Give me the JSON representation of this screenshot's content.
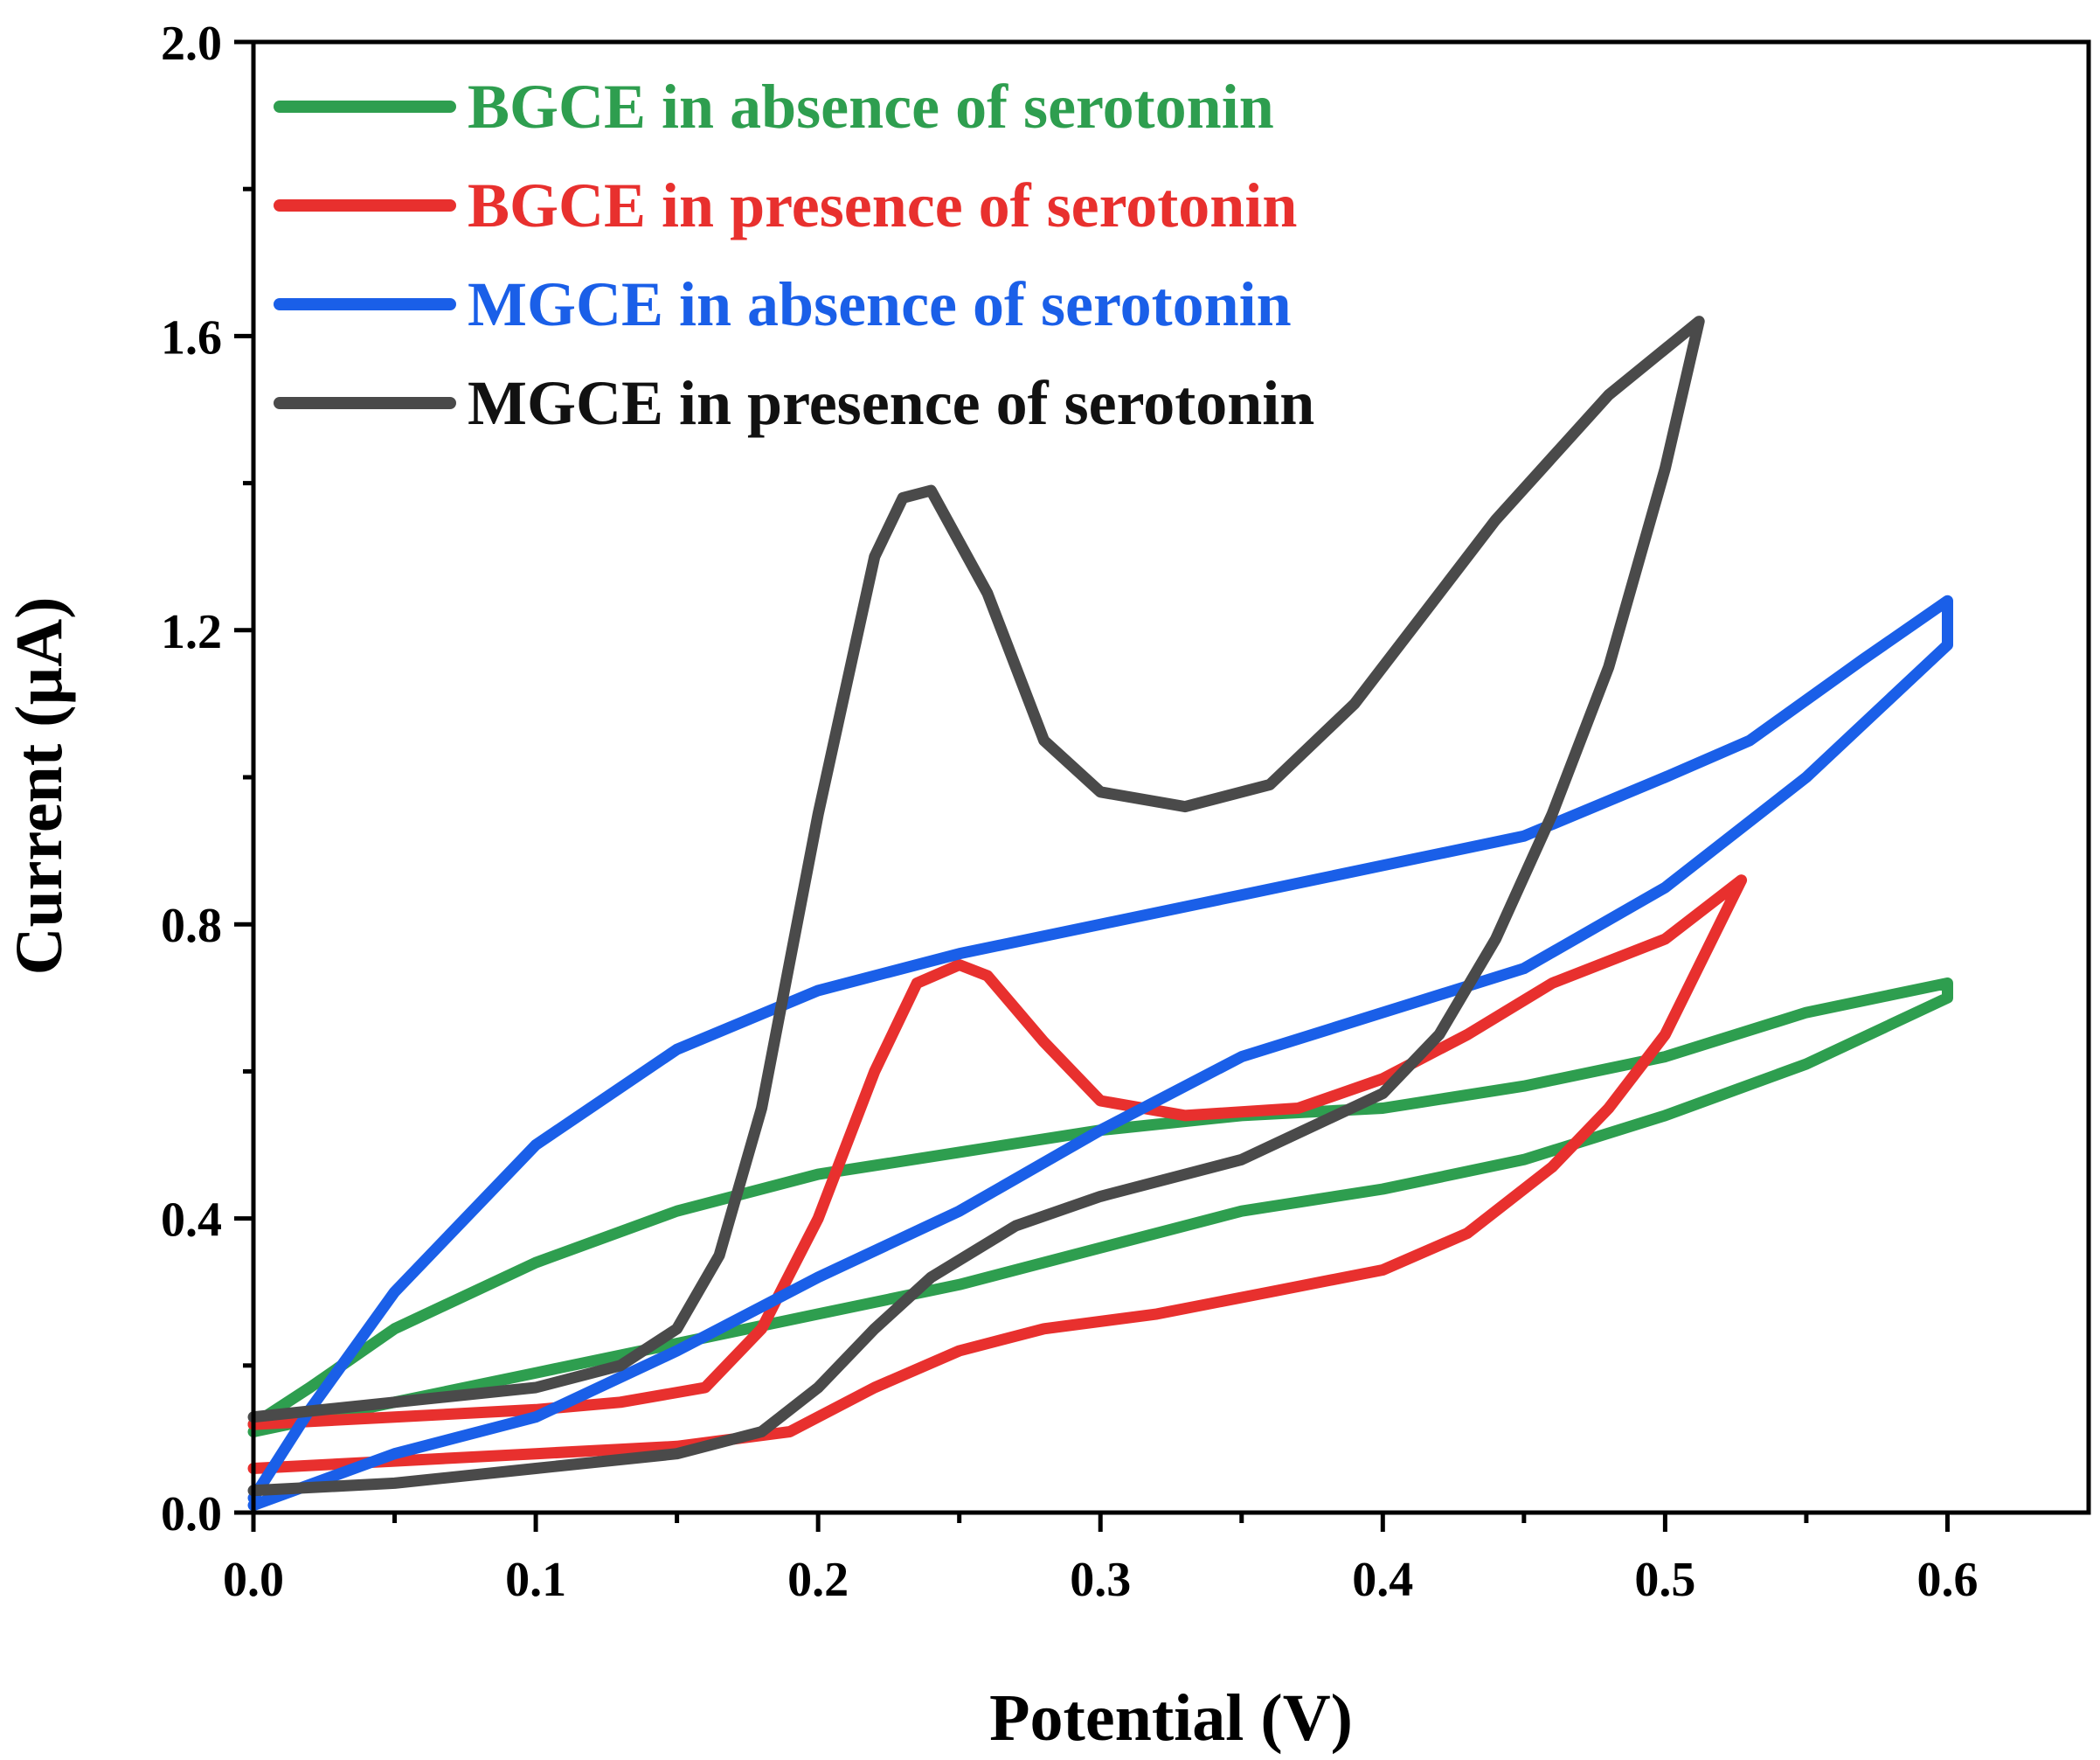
{
  "chart_data": {
    "type": "line",
    "title": "",
    "xlabel": "Potential (V)",
    "ylabel": "Current (µA)",
    "xlim": [
      0.0,
      0.65
    ],
    "ylim": [
      0.0,
      2.0
    ],
    "x_ticks": [
      0.0,
      0.1,
      0.2,
      0.3,
      0.4,
      0.5,
      0.6
    ],
    "x_tick_labels": [
      "0.0",
      "0.1",
      "0.2",
      "0.3",
      "0.4",
      "0.5",
      "0.6"
    ],
    "y_ticks": [
      0.0,
      0.4,
      0.8,
      1.2,
      1.6,
      2.0
    ],
    "y_tick_labels": [
      "0.0",
      "0.4",
      "0.8",
      "1.2",
      "1.6",
      "2.0"
    ],
    "grid": false,
    "legend_position": "top-left",
    "series": [
      {
        "name": "BGCE in absence of serotonin",
        "color": "#2e9e4f",
        "points": [
          [
            0.0,
            0.11
          ],
          [
            0.05,
            0.15
          ],
          [
            0.1,
            0.19
          ],
          [
            0.15,
            0.23
          ],
          [
            0.2,
            0.27
          ],
          [
            0.25,
            0.31
          ],
          [
            0.3,
            0.36
          ],
          [
            0.35,
            0.41
          ],
          [
            0.4,
            0.44
          ],
          [
            0.45,
            0.48
          ],
          [
            0.5,
            0.54
          ],
          [
            0.55,
            0.61
          ],
          [
            0.6,
            0.7
          ],
          [
            0.6,
            0.72
          ],
          [
            0.55,
            0.68
          ],
          [
            0.5,
            0.62
          ],
          [
            0.45,
            0.58
          ],
          [
            0.4,
            0.55
          ],
          [
            0.35,
            0.54
          ],
          [
            0.3,
            0.52
          ],
          [
            0.25,
            0.49
          ],
          [
            0.2,
            0.46
          ],
          [
            0.15,
            0.41
          ],
          [
            0.1,
            0.34
          ],
          [
            0.05,
            0.25
          ],
          [
            0.02,
            0.17
          ],
          [
            0.0,
            0.12
          ]
        ]
      },
      {
        "name": "BGCE in presence of serotonin",
        "color": "#e8302e",
        "points": [
          [
            0.0,
            0.06
          ],
          [
            0.05,
            0.07
          ],
          [
            0.1,
            0.08
          ],
          [
            0.15,
            0.09
          ],
          [
            0.19,
            0.11
          ],
          [
            0.22,
            0.17
          ],
          [
            0.25,
            0.22
          ],
          [
            0.28,
            0.25
          ],
          [
            0.32,
            0.27
          ],
          [
            0.36,
            0.3
          ],
          [
            0.4,
            0.33
          ],
          [
            0.43,
            0.38
          ],
          [
            0.46,
            0.47
          ],
          [
            0.48,
            0.55
          ],
          [
            0.5,
            0.65
          ],
          [
            0.527,
            0.86
          ],
          [
            0.5,
            0.78
          ],
          [
            0.46,
            0.72
          ],
          [
            0.43,
            0.65
          ],
          [
            0.4,
            0.59
          ],
          [
            0.37,
            0.55
          ],
          [
            0.33,
            0.54
          ],
          [
            0.3,
            0.56
          ],
          [
            0.28,
            0.64
          ],
          [
            0.26,
            0.73
          ],
          [
            0.25,
            0.745
          ],
          [
            0.235,
            0.72
          ],
          [
            0.22,
            0.6
          ],
          [
            0.2,
            0.4
          ],
          [
            0.18,
            0.25
          ],
          [
            0.16,
            0.17
          ],
          [
            0.13,
            0.15
          ],
          [
            0.1,
            0.14
          ],
          [
            0.05,
            0.13
          ],
          [
            0.0,
            0.12
          ]
        ]
      },
      {
        "name": "MGCE in absence of serotonin",
        "color": "#1a5fe8",
        "points": [
          [
            0.0,
            0.01
          ],
          [
            0.05,
            0.08
          ],
          [
            0.1,
            0.13
          ],
          [
            0.15,
            0.22
          ],
          [
            0.2,
            0.32
          ],
          [
            0.25,
            0.41
          ],
          [
            0.3,
            0.52
          ],
          [
            0.35,
            0.62
          ],
          [
            0.4,
            0.68
          ],
          [
            0.45,
            0.74
          ],
          [
            0.5,
            0.85
          ],
          [
            0.55,
            1.0
          ],
          [
            0.6,
            1.18
          ],
          [
            0.6,
            1.24
          ],
          [
            0.57,
            1.16
          ],
          [
            0.53,
            1.05
          ],
          [
            0.5,
            1.0
          ],
          [
            0.45,
            0.92
          ],
          [
            0.4,
            0.88
          ],
          [
            0.35,
            0.84
          ],
          [
            0.3,
            0.8
          ],
          [
            0.25,
            0.76
          ],
          [
            0.2,
            0.71
          ],
          [
            0.15,
            0.63
          ],
          [
            0.1,
            0.5
          ],
          [
            0.05,
            0.3
          ],
          [
            0.02,
            0.14
          ],
          [
            0.0,
            0.02
          ]
        ]
      },
      {
        "name": "MGCE in presence of serotonin",
        "color": "#4a4a4a",
        "points": [
          [
            0.0,
            0.03
          ],
          [
            0.05,
            0.04
          ],
          [
            0.1,
            0.06
          ],
          [
            0.15,
            0.08
          ],
          [
            0.18,
            0.11
          ],
          [
            0.2,
            0.17
          ],
          [
            0.22,
            0.25
          ],
          [
            0.24,
            0.32
          ],
          [
            0.27,
            0.39
          ],
          [
            0.3,
            0.43
          ],
          [
            0.35,
            0.48
          ],
          [
            0.4,
            0.57
          ],
          [
            0.42,
            0.65
          ],
          [
            0.44,
            0.78
          ],
          [
            0.46,
            0.95
          ],
          [
            0.48,
            1.15
          ],
          [
            0.5,
            1.42
          ],
          [
            0.512,
            1.62
          ],
          [
            0.48,
            1.52
          ],
          [
            0.44,
            1.35
          ],
          [
            0.42,
            1.25
          ],
          [
            0.39,
            1.1
          ],
          [
            0.36,
            0.99
          ],
          [
            0.33,
            0.96
          ],
          [
            0.3,
            0.98
          ],
          [
            0.28,
            1.05
          ],
          [
            0.26,
            1.25
          ],
          [
            0.24,
            1.39
          ],
          [
            0.23,
            1.38
          ],
          [
            0.22,
            1.3
          ],
          [
            0.2,
            0.95
          ],
          [
            0.18,
            0.55
          ],
          [
            0.165,
            0.35
          ],
          [
            0.15,
            0.25
          ],
          [
            0.13,
            0.2
          ],
          [
            0.1,
            0.17
          ],
          [
            0.05,
            0.15
          ],
          [
            0.0,
            0.13
          ]
        ]
      }
    ]
  }
}
